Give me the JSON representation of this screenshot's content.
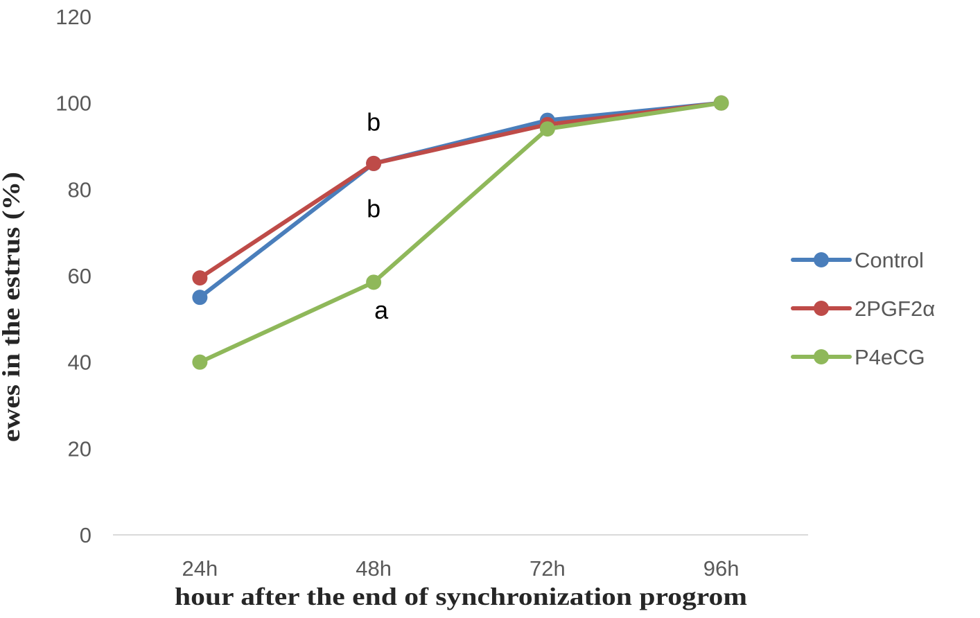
{
  "chart_data": {
    "type": "line",
    "title": "",
    "xlabel": "hour  after the end of synchronization  progrom",
    "ylabel": "ewes in the estrus (%)",
    "categories": [
      "24h",
      "48h",
      "72h",
      "96h"
    ],
    "ylim": [
      0,
      120
    ],
    "yticks": [
      "0",
      "20",
      "40",
      "60",
      "80",
      "100",
      "120"
    ],
    "grid": false,
    "legend_position": "right",
    "series": [
      {
        "name": "Control",
        "color": "#4a7ebb",
        "values": [
          55,
          86,
          96,
          100
        ]
      },
      {
        "name": "2PGF2α",
        "color": "#be4b48",
        "values": [
          59.5,
          86,
          95,
          100
        ]
      },
      {
        "name": "P4eCG",
        "color": "#8fb85a",
        "values": [
          40,
          58.5,
          94,
          100
        ]
      }
    ],
    "annotations": [
      {
        "text": "b",
        "category": "48h",
        "value": 95.5
      },
      {
        "text": "b",
        "category": "48h",
        "value": 75.5
      },
      {
        "text": "a",
        "category": "48h",
        "value": 52
      }
    ]
  }
}
